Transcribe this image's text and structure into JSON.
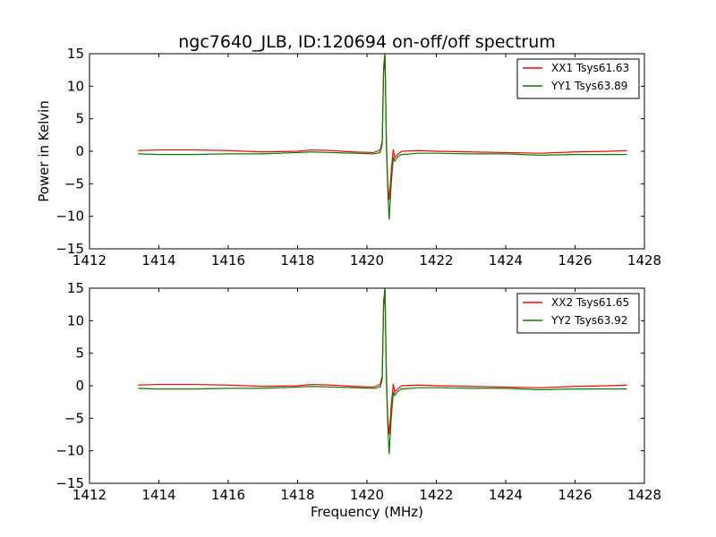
{
  "title": "ngc7640_JLB, ID:120694 on-off/off spectrum",
  "chart_data": [
    {
      "type": "line",
      "xlabel": "",
      "ylabel": "Power in Kelvin",
      "xlim": [
        1412,
        1428
      ],
      "ylim": [
        -15,
        15
      ],
      "xticks": [
        1412,
        1414,
        1416,
        1418,
        1420,
        1422,
        1424,
        1426,
        1428
      ],
      "yticks": [
        -15,
        -10,
        -5,
        0,
        5,
        10,
        15
      ],
      "grid": false,
      "legend_position": "top-right",
      "series": [
        {
          "name": "XX1 Tsys61.63",
          "color": "#ff0000",
          "points": [
            [
              1413.4,
              0.1
            ],
            [
              1414.0,
              0.2
            ],
            [
              1415.0,
              0.2
            ],
            [
              1416.0,
              0.1
            ],
            [
              1417.0,
              -0.1
            ],
            [
              1418.0,
              0.0
            ],
            [
              1418.4,
              0.2
            ],
            [
              1419.0,
              0.1
            ],
            [
              1419.6,
              -0.1
            ],
            [
              1420.2,
              -0.2
            ],
            [
              1420.38,
              0.2
            ],
            [
              1420.44,
              1.5
            ],
            [
              1420.48,
              12.0
            ],
            [
              1420.52,
              15.0
            ],
            [
              1420.56,
              2.0
            ],
            [
              1420.6,
              -5.0
            ],
            [
              1420.64,
              -7.5
            ],
            [
              1420.7,
              -3.0
            ],
            [
              1420.76,
              0.3
            ],
            [
              1420.8,
              -1.0
            ],
            [
              1420.9,
              -0.4
            ],
            [
              1421.0,
              0.0
            ],
            [
              1421.5,
              0.1
            ],
            [
              1422.0,
              0.0
            ],
            [
              1423.0,
              -0.1
            ],
            [
              1424.0,
              -0.2
            ],
            [
              1425.0,
              -0.3
            ],
            [
              1426.0,
              -0.1
            ],
            [
              1427.0,
              0.0
            ],
            [
              1427.5,
              0.1
            ]
          ]
        },
        {
          "name": "YY1 Tsys63.89",
          "color": "#008000",
          "points": [
            [
              1413.4,
              -0.4
            ],
            [
              1414.0,
              -0.5
            ],
            [
              1415.0,
              -0.5
            ],
            [
              1416.0,
              -0.4
            ],
            [
              1417.0,
              -0.4
            ],
            [
              1418.0,
              -0.2
            ],
            [
              1418.4,
              -0.1
            ],
            [
              1419.0,
              -0.2
            ],
            [
              1419.6,
              -0.3
            ],
            [
              1420.2,
              -0.4
            ],
            [
              1420.38,
              -0.2
            ],
            [
              1420.44,
              1.0
            ],
            [
              1420.48,
              13.0
            ],
            [
              1420.52,
              15.0
            ],
            [
              1420.56,
              1.0
            ],
            [
              1420.6,
              -6.0
            ],
            [
              1420.64,
              -10.5
            ],
            [
              1420.7,
              -5.0
            ],
            [
              1420.76,
              -1.0
            ],
            [
              1420.8,
              -1.5
            ],
            [
              1420.9,
              -0.8
            ],
            [
              1421.0,
              -0.5
            ],
            [
              1421.5,
              -0.3
            ],
            [
              1422.0,
              -0.3
            ],
            [
              1423.0,
              -0.4
            ],
            [
              1424.0,
              -0.4
            ],
            [
              1425.0,
              -0.6
            ],
            [
              1426.0,
              -0.5
            ],
            [
              1427.0,
              -0.5
            ],
            [
              1427.5,
              -0.5
            ]
          ]
        }
      ]
    },
    {
      "type": "line",
      "xlabel": "Frequency (MHz)",
      "ylabel": "",
      "xlim": [
        1412,
        1428
      ],
      "ylim": [
        -15,
        15
      ],
      "xticks": [
        1412,
        1414,
        1416,
        1418,
        1420,
        1422,
        1424,
        1426,
        1428
      ],
      "yticks": [
        -15,
        -10,
        -5,
        0,
        5,
        10,
        15
      ],
      "grid": false,
      "legend_position": "top-right",
      "series": [
        {
          "name": "XX2 Tsys61.65",
          "color": "#ff0000",
          "points": [
            [
              1413.4,
              0.1
            ],
            [
              1414.0,
              0.2
            ],
            [
              1415.0,
              0.2
            ],
            [
              1416.0,
              0.1
            ],
            [
              1417.0,
              -0.1
            ],
            [
              1418.0,
              0.0
            ],
            [
              1418.4,
              0.2
            ],
            [
              1419.0,
              0.1
            ],
            [
              1419.6,
              -0.1
            ],
            [
              1420.2,
              -0.2
            ],
            [
              1420.38,
              0.2
            ],
            [
              1420.44,
              1.5
            ],
            [
              1420.48,
              12.0
            ],
            [
              1420.52,
              15.0
            ],
            [
              1420.56,
              2.0
            ],
            [
              1420.6,
              -5.0
            ],
            [
              1420.64,
              -7.5
            ],
            [
              1420.7,
              -3.0
            ],
            [
              1420.76,
              0.3
            ],
            [
              1420.8,
              -1.0
            ],
            [
              1420.9,
              -0.4
            ],
            [
              1421.0,
              0.0
            ],
            [
              1421.5,
              0.1
            ],
            [
              1422.0,
              0.0
            ],
            [
              1423.0,
              -0.1
            ],
            [
              1424.0,
              -0.2
            ],
            [
              1425.0,
              -0.3
            ],
            [
              1426.0,
              -0.1
            ],
            [
              1427.0,
              0.0
            ],
            [
              1427.5,
              0.1
            ]
          ]
        },
        {
          "name": "YY2 Tsys63.92",
          "color": "#008000",
          "points": [
            [
              1413.4,
              -0.4
            ],
            [
              1414.0,
              -0.5
            ],
            [
              1415.0,
              -0.5
            ],
            [
              1416.0,
              -0.4
            ],
            [
              1417.0,
              -0.4
            ],
            [
              1418.0,
              -0.2
            ],
            [
              1418.4,
              -0.1
            ],
            [
              1419.0,
              -0.2
            ],
            [
              1419.6,
              -0.3
            ],
            [
              1420.2,
              -0.4
            ],
            [
              1420.38,
              -0.2
            ],
            [
              1420.44,
              1.0
            ],
            [
              1420.48,
              13.0
            ],
            [
              1420.52,
              15.0
            ],
            [
              1420.56,
              1.0
            ],
            [
              1420.6,
              -6.0
            ],
            [
              1420.64,
              -10.5
            ],
            [
              1420.7,
              -5.0
            ],
            [
              1420.76,
              -1.0
            ],
            [
              1420.8,
              -1.5
            ],
            [
              1420.9,
              -0.8
            ],
            [
              1421.0,
              -0.5
            ],
            [
              1421.5,
              -0.3
            ],
            [
              1422.0,
              -0.3
            ],
            [
              1423.0,
              -0.4
            ],
            [
              1424.0,
              -0.4
            ],
            [
              1425.0,
              -0.6
            ],
            [
              1426.0,
              -0.5
            ],
            [
              1427.0,
              -0.5
            ],
            [
              1427.5,
              -0.5
            ]
          ]
        }
      ]
    }
  ]
}
